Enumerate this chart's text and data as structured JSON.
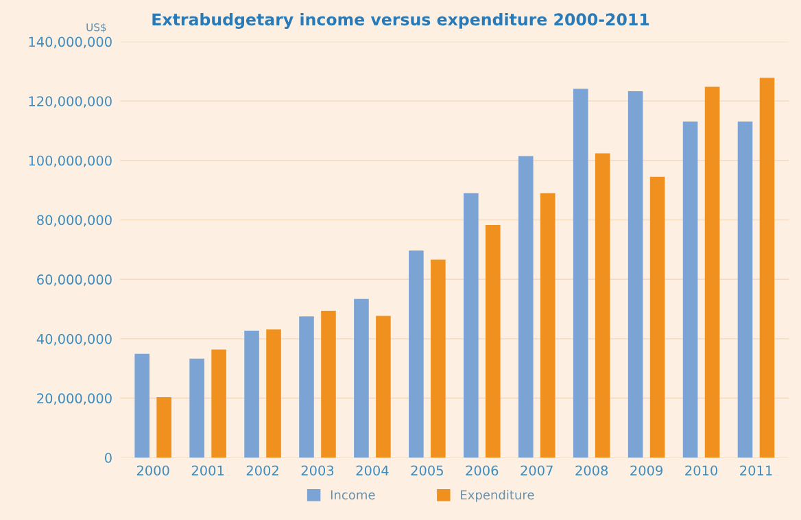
{
  "chart_data": {
    "type": "bar",
    "title": "Extrabudgetary income versus expenditure 2000-2011",
    "ylabel": "US$",
    "categories": [
      "2000",
      "2001",
      "2002",
      "2003",
      "2004",
      "2005",
      "2006",
      "2007",
      "2008",
      "2009",
      "2010",
      "2011"
    ],
    "series": [
      {
        "name": "Income",
        "color": "#7ba3d4",
        "values": [
          34900000,
          33300000,
          42700000,
          47500000,
          53400000,
          69700000,
          89000000,
          101500000,
          124100000,
          123300000,
          113100000,
          113100000
        ]
      },
      {
        "name": "Expenditure",
        "color": "#f0901e",
        "values": [
          20300000,
          36400000,
          43100000,
          49400000,
          47700000,
          66600000,
          78300000,
          89000000,
          102400000,
          94500000,
          124800000,
          127800000
        ]
      }
    ],
    "ylim": [
      0,
      140000000
    ],
    "yticks": [
      {
        "value": 0,
        "label": "0"
      },
      {
        "value": 20000000,
        "label": "20,000,000"
      },
      {
        "value": 40000000,
        "label": "40,000,000"
      },
      {
        "value": 60000000,
        "label": "60,000,000"
      },
      {
        "value": 80000000,
        "label": "80,000,000"
      },
      {
        "value": 100000000,
        "label": "100,000,000"
      },
      {
        "value": 120000000,
        "label": "120,000,000"
      },
      {
        "value": 140000000,
        "label": "140,000,000"
      }
    ],
    "grid": "y",
    "legend": "bottom"
  }
}
